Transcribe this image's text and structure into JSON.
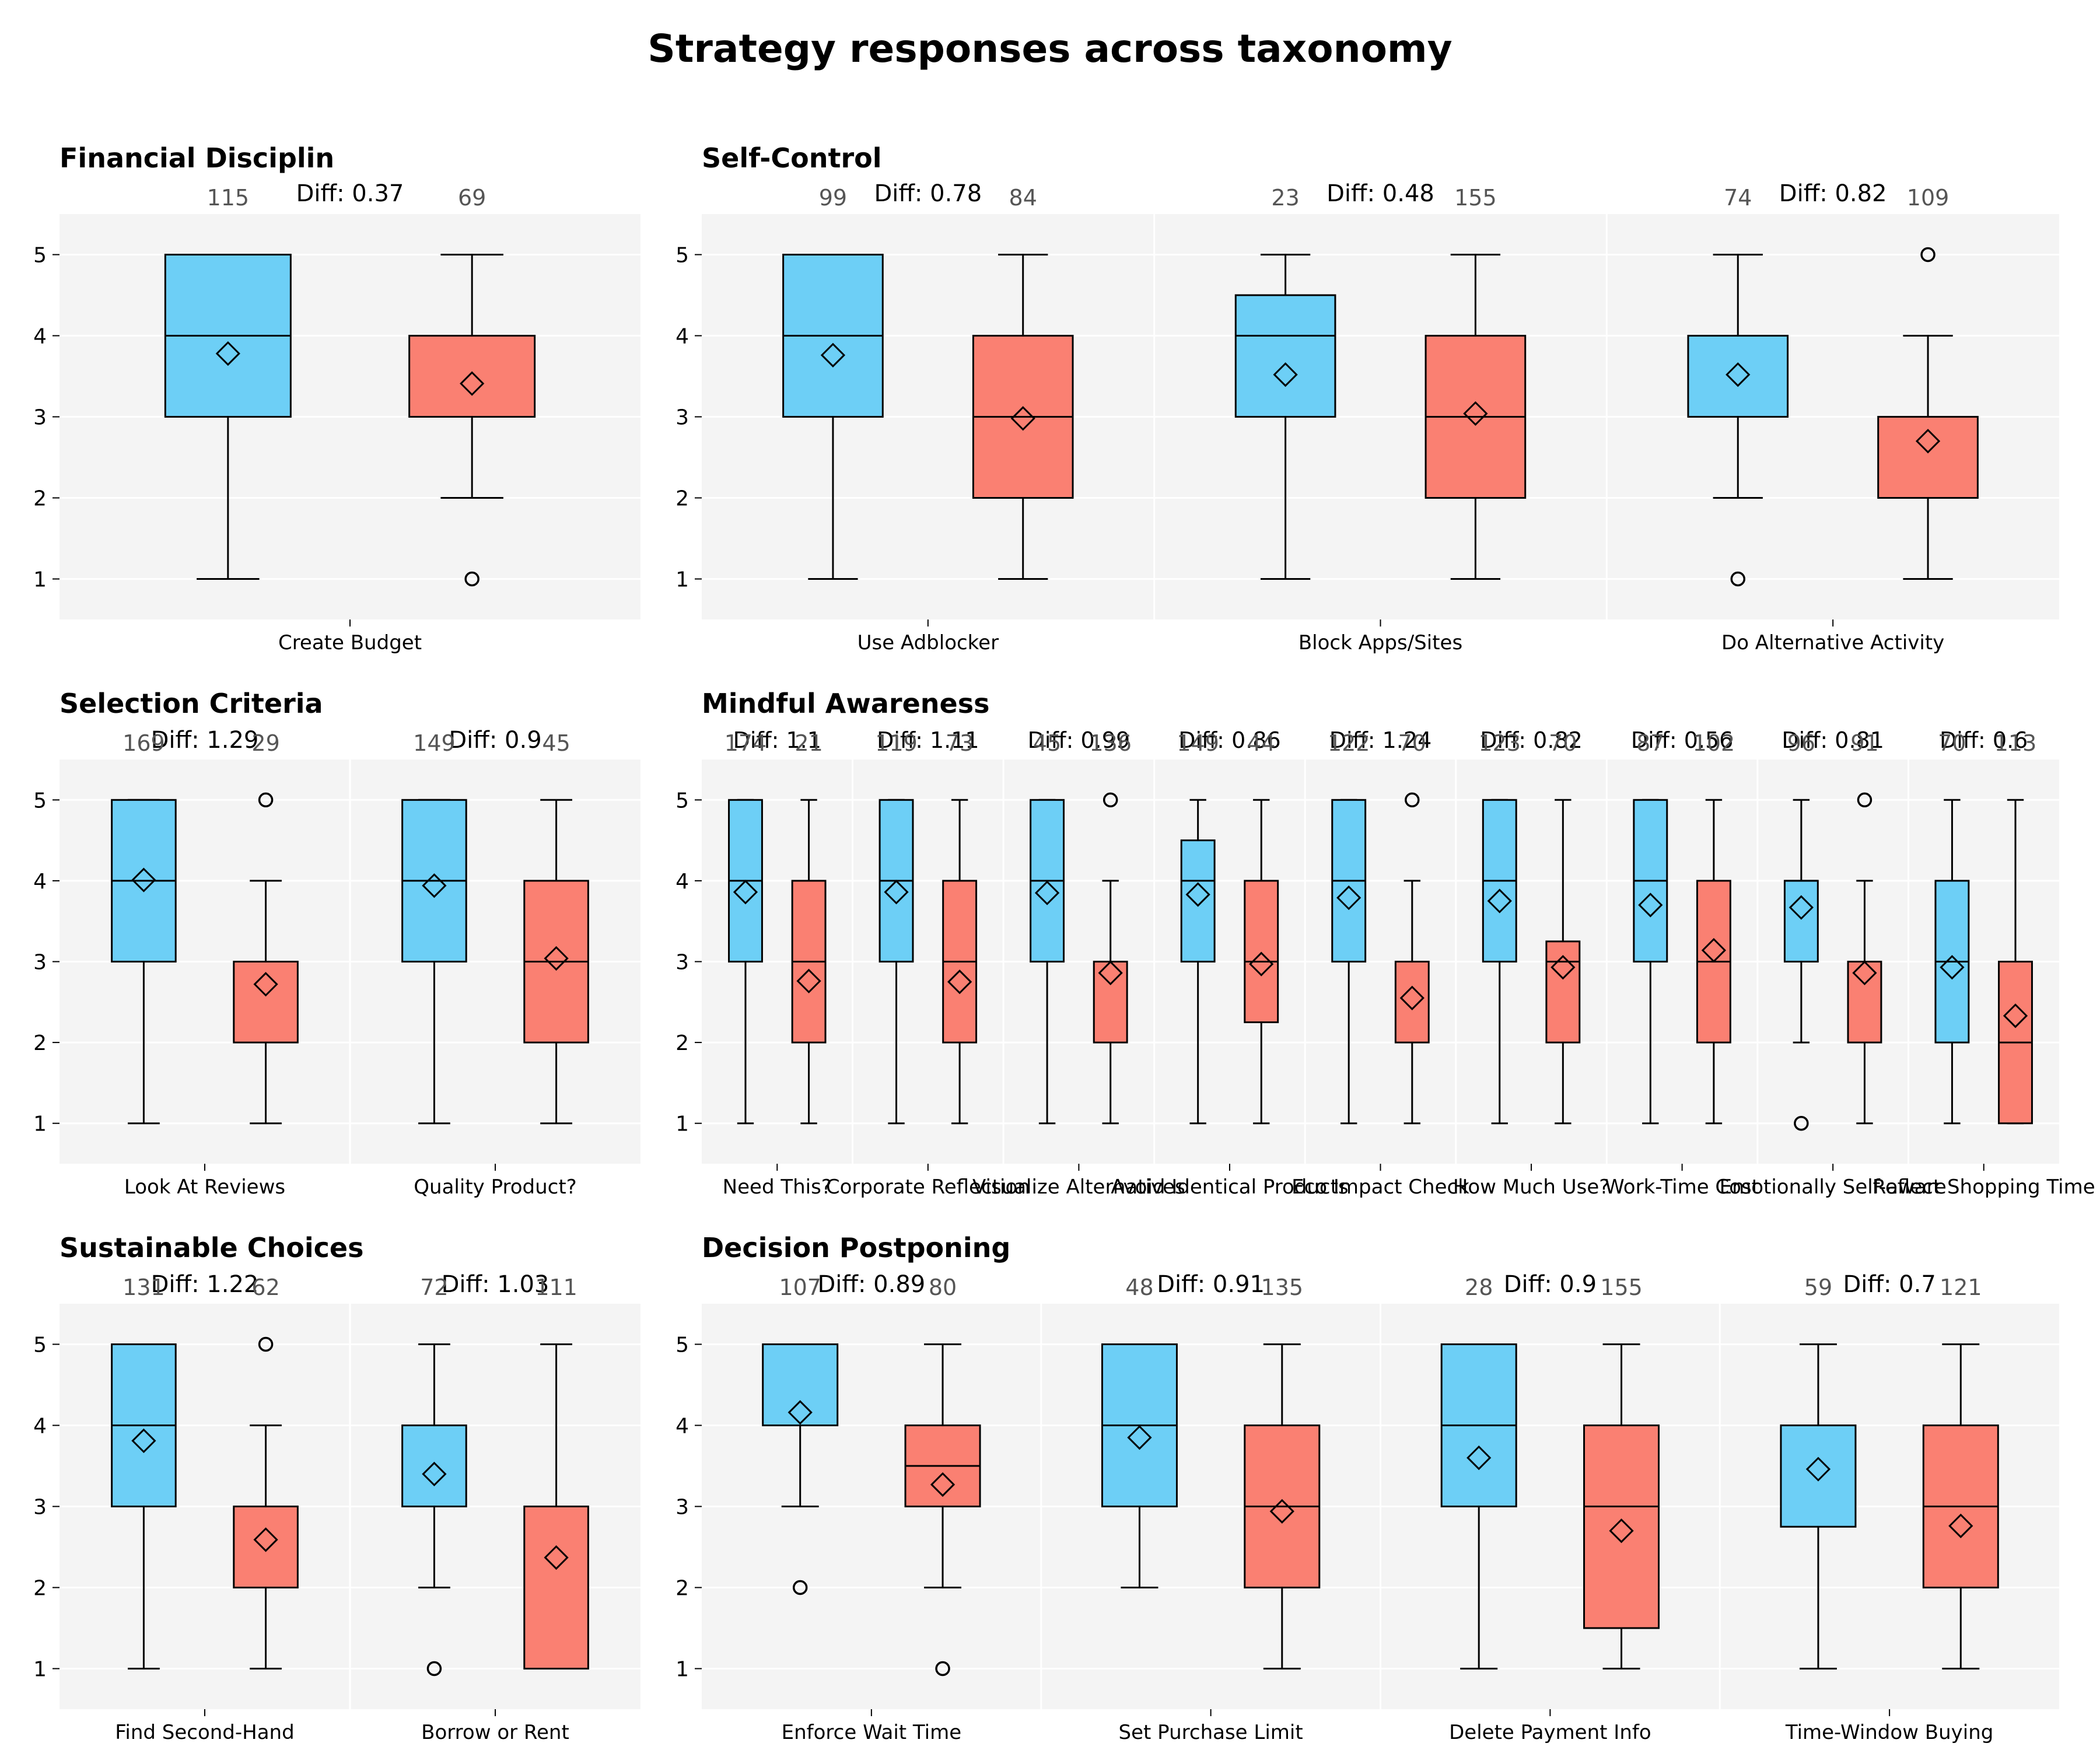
{
  "chart_data": {
    "type": "box",
    "title": "Strategy responses across taxonomy",
    "ylim": [
      0.5,
      5.5
    ],
    "yticks": [
      1,
      2,
      3,
      4,
      5
    ],
    "grid": true,
    "colors": {
      "group_a": "#6dcff6",
      "group_b": "#fa8072",
      "panel_bg": "#f4f4f4",
      "grid": "#ffffff",
      "outline": "#000000"
    },
    "panels": [
      {
        "title": "Financial Disciplin",
        "groups": [
          {
            "label": "Create Budget",
            "diff": "Diff: 0.37",
            "boxes": [
              {
                "n": "115",
                "q1": 3,
                "median": 4,
                "q3": 5,
                "wlo": 1,
                "whi": 5,
                "mean": 3.78,
                "outliers": []
              },
              {
                "n": "69",
                "q1": 3,
                "median": 4,
                "q3": 4,
                "wlo": 2,
                "whi": 5,
                "mean": 3.41,
                "outliers": [
                  1
                ]
              }
            ]
          }
        ]
      },
      {
        "title": "Self-Control",
        "groups": [
          {
            "label": "Use Adblocker",
            "diff": "Diff: 0.78",
            "boxes": [
              {
                "n": "99",
                "q1": 3,
                "median": 4,
                "q3": 5,
                "wlo": 1,
                "whi": 5,
                "mean": 3.76,
                "outliers": []
              },
              {
                "n": "84",
                "q1": 2,
                "median": 3,
                "q3": 4,
                "wlo": 1,
                "whi": 5,
                "mean": 2.98,
                "outliers": []
              }
            ]
          },
          {
            "label": "Block Apps/Sites",
            "diff": "Diff: 0.48",
            "boxes": [
              {
                "n": "23",
                "q1": 3,
                "median": 4,
                "q3": 4.5,
                "wlo": 1,
                "whi": 5,
                "mean": 3.52,
                "outliers": []
              },
              {
                "n": "155",
                "q1": 2,
                "median": 3,
                "q3": 4,
                "wlo": 1,
                "whi": 5,
                "mean": 3.04,
                "outliers": []
              }
            ]
          },
          {
            "label": "Do Alternative Activity",
            "diff": "Diff: 0.82",
            "boxes": [
              {
                "n": "74",
                "q1": 3,
                "median": 4,
                "q3": 4,
                "wlo": 2,
                "whi": 5,
                "mean": 3.52,
                "outliers": [
                  1
                ]
              },
              {
                "n": "109",
                "q1": 2,
                "median": 3,
                "q3": 3,
                "wlo": 1,
                "whi": 4,
                "mean": 2.7,
                "outliers": [
                  5
                ]
              }
            ]
          }
        ]
      },
      {
        "title": "Selection Criteria",
        "groups": [
          {
            "label": "Look At Reviews",
            "diff": "Diff: 1.29",
            "boxes": [
              {
                "n": "169",
                "q1": 3,
                "median": 4,
                "q3": 5,
                "wlo": 1,
                "whi": 5,
                "mean": 4.01,
                "outliers": []
              },
              {
                "n": "29",
                "q1": 2,
                "median": 3,
                "q3": 3,
                "wlo": 1,
                "whi": 4,
                "mean": 2.72,
                "outliers": [
                  5
                ]
              }
            ]
          },
          {
            "label": "Quality Product?",
            "diff": "Diff: 0.9",
            "boxes": [
              {
                "n": "149",
                "q1": 3,
                "median": 4,
                "q3": 5,
                "wlo": 1,
                "whi": 5,
                "mean": 3.94,
                "outliers": []
              },
              {
                "n": "45",
                "q1": 2,
                "median": 3,
                "q3": 4,
                "wlo": 1,
                "whi": 5,
                "mean": 3.04,
                "outliers": []
              }
            ]
          }
        ]
      },
      {
        "title": "Mindful Awareness",
        "groups": [
          {
            "label": "Need This?",
            "diff": "Diff: 1.1",
            "boxes": [
              {
                "n": "174",
                "q1": 3,
                "median": 4,
                "q3": 5,
                "wlo": 1,
                "whi": 5,
                "mean": 3.86,
                "outliers": []
              },
              {
                "n": "21",
                "q1": 2,
                "median": 3,
                "q3": 4,
                "wlo": 1,
                "whi": 5,
                "mean": 2.76,
                "outliers": []
              }
            ]
          },
          {
            "label": "Corporate Reflection",
            "diff": "Diff: 1.11",
            "boxes": [
              {
                "n": "119",
                "q1": 3,
                "median": 4,
                "q3": 5,
                "wlo": 1,
                "whi": 5,
                "mean": 3.86,
                "outliers": []
              },
              {
                "n": "73",
                "q1": 2,
                "median": 3,
                "q3": 4,
                "wlo": 1,
                "whi": 5,
                "mean": 2.75,
                "outliers": []
              }
            ]
          },
          {
            "label": "Visualize Alternatives",
            "diff": "Diff: 0.99",
            "boxes": [
              {
                "n": "45",
                "q1": 3,
                "median": 4,
                "q3": 5,
                "wlo": 1,
                "whi": 5,
                "mean": 3.85,
                "outliers": []
              },
              {
                "n": "136",
                "q1": 2,
                "median": 3,
                "q3": 3,
                "wlo": 1,
                "whi": 4,
                "mean": 2.86,
                "outliers": [
                  5
                ]
              }
            ]
          },
          {
            "label": "Avoid Identical Products",
            "diff": "Diff: 0.86",
            "boxes": [
              {
                "n": "149",
                "q1": 3,
                "median": 4,
                "q3": 4.5,
                "wlo": 1,
                "whi": 5,
                "mean": 3.83,
                "outliers": []
              },
              {
                "n": "44",
                "q1": 2.25,
                "median": 3,
                "q3": 4,
                "wlo": 1,
                "whi": 5,
                "mean": 2.97,
                "outliers": []
              }
            ]
          },
          {
            "label": "Eco Impact Check",
            "diff": "Diff: 1.24",
            "boxes": [
              {
                "n": "122",
                "q1": 3,
                "median": 4,
                "q3": 5,
                "wlo": 1,
                "whi": 5,
                "mean": 3.79,
                "outliers": []
              },
              {
                "n": "70",
                "q1": 2,
                "median": 3,
                "q3": 3,
                "wlo": 1,
                "whi": 4,
                "mean": 2.55,
                "outliers": [
                  5
                ]
              }
            ]
          },
          {
            "label": "How Much Use?",
            "diff": "Diff: 0.82",
            "boxes": [
              {
                "n": "123",
                "q1": 3,
                "median": 4,
                "q3": 5,
                "wlo": 1,
                "whi": 5,
                "mean": 3.75,
                "outliers": []
              },
              {
                "n": "70",
                "q1": 2,
                "median": 3,
                "q3": 3.25,
                "wlo": 1,
                "whi": 5,
                "mean": 2.93,
                "outliers": []
              }
            ]
          },
          {
            "label": "Work-Time Cost",
            "diff": "Diff: 0.56",
            "boxes": [
              {
                "n": "87",
                "q1": 3,
                "median": 4,
                "q3": 5,
                "wlo": 1,
                "whi": 5,
                "mean": 3.7,
                "outliers": []
              },
              {
                "n": "102",
                "q1": 2,
                "median": 3,
                "q3": 4,
                "wlo": 1,
                "whi": 5,
                "mean": 3.14,
                "outliers": []
              }
            ]
          },
          {
            "label": "Emotionally Self-aware",
            "diff": "Diff: 0.81",
            "boxes": [
              {
                "n": "96",
                "q1": 3,
                "median": 4,
                "q3": 4,
                "wlo": 2,
                "whi": 5,
                "mean": 3.67,
                "outliers": [
                  1
                ]
              },
              {
                "n": "91",
                "q1": 2,
                "median": 3,
                "q3": 3,
                "wlo": 1,
                "whi": 4,
                "mean": 2.86,
                "outliers": [
                  5
                ]
              }
            ]
          },
          {
            "label": "Reflect Shopping Time",
            "diff": "Diff: 0.6",
            "boxes": [
              {
                "n": "70",
                "q1": 2,
                "median": 3,
                "q3": 4,
                "wlo": 1,
                "whi": 5,
                "mean": 2.93,
                "outliers": []
              },
              {
                "n": "113",
                "q1": 1,
                "median": 2,
                "q3": 3,
                "wlo": 1,
                "whi": 5,
                "mean": 2.33,
                "outliers": []
              }
            ]
          }
        ]
      },
      {
        "title": "Sustainable Choices",
        "groups": [
          {
            "label": "Find Second-Hand",
            "diff": "Diff: 1.22",
            "boxes": [
              {
                "n": "131",
                "q1": 3,
                "median": 4,
                "q3": 5,
                "wlo": 1,
                "whi": 5,
                "mean": 3.81,
                "outliers": []
              },
              {
                "n": "62",
                "q1": 2,
                "median": 3,
                "q3": 3,
                "wlo": 1,
                "whi": 4,
                "mean": 2.59,
                "outliers": [
                  5
                ]
              }
            ]
          },
          {
            "label": "Borrow or Rent",
            "diff": "Diff: 1.03",
            "boxes": [
              {
                "n": "72",
                "q1": 3,
                "median": 4,
                "q3": 4,
                "wlo": 2,
                "whi": 5,
                "mean": 3.4,
                "outliers": [
                  1
                ]
              },
              {
                "n": "111",
                "q1": 1,
                "median": 1,
                "q3": 3,
                "wlo": 1,
                "whi": 5,
                "mean": 2.37,
                "outliers": []
              }
            ]
          }
        ]
      },
      {
        "title": "Decision Postponing",
        "groups": [
          {
            "label": "Enforce Wait Time",
            "diff": "Diff: 0.89",
            "boxes": [
              {
                "n": "107",
                "q1": 4,
                "median": 5,
                "q3": 5,
                "wlo": 3,
                "whi": 5,
                "mean": 4.16,
                "outliers": [
                  2
                ]
              },
              {
                "n": "80",
                "q1": 3,
                "median": 3.5,
                "q3": 4,
                "wlo": 2,
                "whi": 5,
                "mean": 3.27,
                "outliers": [
                  1
                ]
              }
            ]
          },
          {
            "label": "Set Purchase Limit",
            "diff": "Diff: 0.91",
            "boxes": [
              {
                "n": "48",
                "q1": 3,
                "median": 4,
                "q3": 5,
                "wlo": 2,
                "whi": 5,
                "mean": 3.85,
                "outliers": []
              },
              {
                "n": "135",
                "q1": 2,
                "median": 3,
                "q3": 4,
                "wlo": 1,
                "whi": 5,
                "mean": 2.94,
                "outliers": []
              }
            ]
          },
          {
            "label": "Delete Payment Info",
            "diff": "Diff: 0.9",
            "boxes": [
              {
                "n": "28",
                "q1": 3,
                "median": 4,
                "q3": 5,
                "wlo": 1,
                "whi": 5,
                "mean": 3.6,
                "outliers": []
              },
              {
                "n": "155",
                "q1": 1.5,
                "median": 3,
                "q3": 4,
                "wlo": 1,
                "whi": 5,
                "mean": 2.7,
                "outliers": []
              }
            ]
          },
          {
            "label": "Time-Window Buying",
            "diff": "Diff: 0.7",
            "boxes": [
              {
                "n": "59",
                "q1": 2.75,
                "median": 4,
                "q3": 4,
                "wlo": 1,
                "whi": 5,
                "mean": 3.46,
                "outliers": []
              },
              {
                "n": "121",
                "q1": 2,
                "median": 3,
                "q3": 4,
                "wlo": 1,
                "whi": 5,
                "mean": 2.76,
                "outliers": []
              }
            ]
          }
        ]
      }
    ]
  }
}
